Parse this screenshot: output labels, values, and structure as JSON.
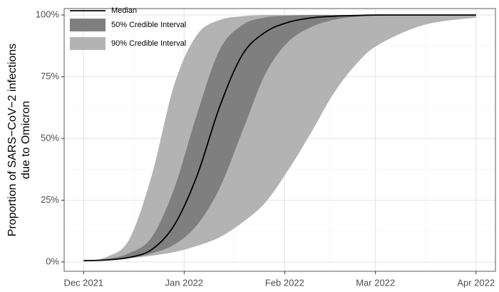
{
  "chart_data": {
    "type": "line",
    "ylabel": [
      "Proportion of SARS−CoV−2 infections",
      "due to Omicron"
    ],
    "x": [
      0,
      7,
      14,
      21,
      28,
      35,
      42,
      49,
      56,
      63,
      70,
      77,
      84,
      91,
      105,
      121
    ],
    "xlim": [
      -6,
      127
    ],
    "xticks": [
      {
        "value": 0,
        "label": "Dec 2021"
      },
      {
        "value": 31,
        "label": "Jan 2022"
      },
      {
        "value": 62,
        "label": "Feb 2022"
      },
      {
        "value": 90,
        "label": "Mar 2022"
      },
      {
        "value": 121,
        "label": "Apr 2022"
      }
    ],
    "ylim": [
      -3.8,
      102.6
    ],
    "yticks": [
      {
        "value": 0,
        "label": "0%"
      },
      {
        "value": 25,
        "label": "25%"
      },
      {
        "value": 50,
        "label": "50%"
      },
      {
        "value": 75,
        "label": "75%"
      },
      {
        "value": 100,
        "label": "100%"
      }
    ],
    "grid": true,
    "legend": "top-left",
    "bands": [
      {
        "name": "90% Credible Interval",
        "color": "#b3b3b3",
        "lower": [
          0.3,
          0.8,
          1.5,
          2.5,
          4,
          6.5,
          10,
          16,
          24,
          37,
          52,
          68,
          80,
          88,
          96,
          99
        ],
        "upper": [
          0.5,
          2,
          9,
          35,
          72,
          92,
          98,
          99.5,
          100,
          100,
          100,
          100,
          100,
          100,
          100,
          100
        ]
      },
      {
        "name": "50% Credible Interval",
        "color": "#7f7f7f",
        "lower": [
          0.3,
          0.8,
          1.5,
          3.5,
          7,
          15,
          30,
          53,
          76,
          89,
          95,
          98,
          99.3,
          99.7,
          100,
          100
        ],
        "upper": [
          0.5,
          1.2,
          3.5,
          10,
          30,
          60,
          86,
          96,
          99,
          99.7,
          100,
          100,
          100,
          100,
          100,
          100
        ]
      }
    ],
    "series": [
      {
        "name": "Median",
        "color": "#000000",
        "values": [
          0.5,
          0.8,
          1.8,
          5,
          15,
          35,
          63,
          84,
          93,
          97,
          98.8,
          99.5,
          99.8,
          100,
          100,
          100
        ]
      }
    ]
  }
}
